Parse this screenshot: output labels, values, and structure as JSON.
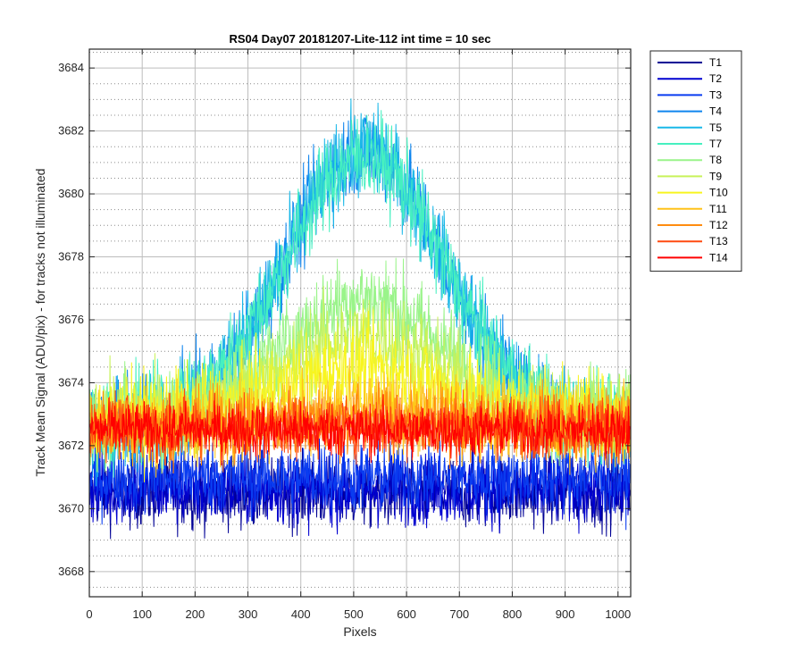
{
  "chart_data": {
    "type": "line",
    "title": "RS04 Day07 20181207-Lite-112 int time = 10 sec",
    "xlabel": "Pixels",
    "ylabel": "Track Mean Signal (ADU/pix) - for tracks not illuminated",
    "xlim": [
      0,
      1024
    ],
    "ylim": [
      3667.2,
      3684.6
    ],
    "xticks": [
      0,
      100,
      200,
      300,
      400,
      500,
      600,
      700,
      800,
      900,
      1000
    ],
    "yticks": [
      3668,
      3670,
      3672,
      3674,
      3676,
      3678,
      3680,
      3682,
      3684
    ],
    "grid": true,
    "minor_grid": true,
    "legend_position": "outside-top-right",
    "x_sampling": {
      "start": 0,
      "end": 1023,
      "step": 1
    },
    "series": [
      {
        "name": "T1",
        "color": "#000095",
        "baseline": 3670.5,
        "bump_peak": 0.0,
        "noise": 0.8
      },
      {
        "name": "T2",
        "color": "#0000d0",
        "baseline": 3670.6,
        "bump_peak": 0.0,
        "noise": 0.8
      },
      {
        "name": "T3",
        "color": "#0a3cf0",
        "baseline": 3671.0,
        "bump_peak": 0.0,
        "noise": 0.8
      },
      {
        "name": "T4",
        "color": "#0f85ee",
        "baseline": 3672.6,
        "bump_peak": 8.8,
        "noise": 1.0
      },
      {
        "name": "T5",
        "color": "#1ab8e8",
        "baseline": 3672.6,
        "bump_peak": 8.8,
        "noise": 1.0
      },
      {
        "name": "T7",
        "color": "#46f0c0",
        "baseline": 3672.8,
        "bump_peak": 8.4,
        "noise": 1.0
      },
      {
        "name": "T8",
        "color": "#9af48a",
        "baseline": 3672.9,
        "bump_peak": 3.8,
        "noise": 1.0
      },
      {
        "name": "T9",
        "color": "#c8f25a",
        "baseline": 3672.9,
        "bump_peak": 2.6,
        "noise": 1.0
      },
      {
        "name": "T10",
        "color": "#f8f520",
        "baseline": 3672.9,
        "bump_peak": 1.6,
        "noise": 1.0
      },
      {
        "name": "T11",
        "color": "#ffc21a",
        "baseline": 3672.7,
        "bump_peak": 0.4,
        "noise": 0.9
      },
      {
        "name": "T12",
        "color": "#ff8c10",
        "baseline": 3672.6,
        "bump_peak": 0.2,
        "noise": 0.8
      },
      {
        "name": "T13",
        "color": "#ff4a10",
        "baseline": 3672.6,
        "bump_peak": 0.0,
        "noise": 0.7
      },
      {
        "name": "T14",
        "color": "#ff0000",
        "baseline": 3672.5,
        "bump_peak": 0.0,
        "noise": 0.6
      }
    ]
  }
}
